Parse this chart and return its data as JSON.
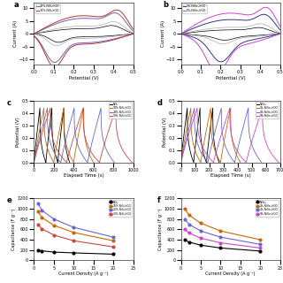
{
  "panel_a": {
    "legend": [
      "20%-NiS₂/rGO",
      "30%-NiS₂/rGO"
    ],
    "colors_main": [
      "#6666bb",
      "#bb4444"
    ],
    "colors_extra": [
      "#aaaadd",
      "#dd9999"
    ],
    "xlim": [
      0.0,
      0.5
    ],
    "ylim": [
      -12,
      12
    ],
    "xlabel": "Potential (V)",
    "ylabel": "Current (A)"
  },
  "panel_b": {
    "legend": [
      "3%-NiSe₂/rGO",
      "5%-NiSe₂/rGO"
    ],
    "colors_main": [
      "#333388",
      "#cc44cc"
    ],
    "colors_extra": [
      "#999999",
      "#cc8888"
    ],
    "xlim": [
      0.0,
      0.5
    ],
    "ylim": [
      -12,
      12
    ],
    "xlabel": "Potential (V)",
    "ylabel": "Current (A)"
  },
  "panel_c": {
    "legend": [
      "NiS₂",
      "10%-NiS₂/rGO",
      "20%-NiS₂/rGO",
      "30%-NiS₂/rGO"
    ],
    "colors": [
      "#000000",
      "#cc6600",
      "#6666cc",
      "#cc4444"
    ],
    "xlim": [
      0,
      1000
    ],
    "ylim": [
      0.0,
      0.5
    ],
    "xlabel": "Elapsed Time (s)",
    "ylabel": "Potential (V)",
    "t_ends": [
      400,
      680,
      820,
      970
    ],
    "charge_times": [
      100,
      200,
      300,
      400
    ],
    "v_high": [
      0.44,
      0.44,
      0.44,
      0.44
    ],
    "v_low": [
      0.0,
      0.0,
      0.0,
      0.0
    ]
  },
  "panel_d": {
    "legend": [
      "NiSe₂",
      "1%-NiSe₂/rGO",
      "3%-NiSe₂/rGO",
      "5%-NiSe₂/rGO"
    ],
    "colors": [
      "#000000",
      "#cc6600",
      "#6666cc",
      "#cc44cc"
    ],
    "xlim": [
      0,
      700
    ],
    "ylim": [
      0.0,
      0.5
    ],
    "xlabel": "Elapsed Time (s)",
    "ylabel": "Potential (V)",
    "t_ends": [
      280,
      430,
      560,
      660
    ],
    "charge_times": [
      80,
      140,
      200,
      280
    ],
    "v_high": [
      0.44,
      0.44,
      0.44,
      0.44
    ],
    "v_low": [
      0.0,
      0.0,
      0.0,
      0.0
    ]
  },
  "panel_e": {
    "legend": [
      "NiS₂",
      "10%-NiS₂/rGO",
      "20%-NiS₂/rGO",
      "30%-NiS₂/rGO"
    ],
    "colors": [
      "#000000",
      "#cc6600",
      "#6666cc",
      "#cc4444"
    ],
    "xlabel": "Current Density (A g⁻¹)",
    "ylabel": "Capacitance (F g⁻¹)",
    "ylim": [
      0,
      1200
    ],
    "xlim": [
      0,
      25
    ],
    "x_vals": [
      1,
      2,
      5,
      10,
      20
    ],
    "y_vals": [
      [
        200,
        185,
        160,
        145,
        120
      ],
      [
        950,
        830,
        680,
        540,
        380
      ],
      [
        1100,
        970,
        800,
        640,
        450
      ],
      [
        700,
        610,
        490,
        380,
        260
      ]
    ]
  },
  "panel_f": {
    "legend": [
      "NiSe₂",
      "1%-NiSe₂/rGO",
      "3%-NiSe₂/rGO",
      "5%-NiSe₂/rGO"
    ],
    "colors": [
      "#000000",
      "#cc6600",
      "#6666cc",
      "#cc44cc"
    ],
    "xlabel": "Current Density (A g⁻¹)",
    "ylabel": "Capacitance (F g⁻¹)",
    "ylim": [
      0,
      1200
    ],
    "xlim": [
      0,
      25
    ],
    "x_vals": [
      1,
      2,
      5,
      10,
      20
    ],
    "y_vals": [
      [
        400,
        355,
        295,
        240,
        180
      ],
      [
        1000,
        880,
        720,
        570,
        400
      ],
      [
        800,
        700,
        570,
        450,
        310
      ],
      [
        600,
        530,
        430,
        340,
        240
      ]
    ]
  },
  "bg_color": "#ffffff"
}
